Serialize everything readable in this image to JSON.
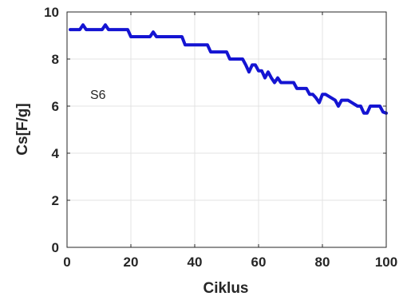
{
  "chart_data": {
    "type": "line",
    "title": "",
    "xlabel": "Ciklus",
    "ylabel": "Cs[F/g]",
    "xlim": [
      0,
      100
    ],
    "ylim": [
      0,
      10
    ],
    "xticks": [
      0,
      20,
      40,
      60,
      80,
      100
    ],
    "yticks": [
      0,
      2,
      4,
      6,
      8,
      10
    ],
    "grid": true,
    "annotation": "S6",
    "line_color": "#1414d2",
    "series": [
      {
        "x": [
          1,
          4,
          5,
          6,
          11,
          12,
          13,
          19,
          20,
          26,
          27,
          28,
          36,
          37,
          44,
          45,
          50,
          51,
          55,
          56,
          57,
          58,
          59,
          60,
          61,
          62,
          63,
          64,
          65,
          66,
          67,
          71,
          72,
          75,
          76,
          77,
          78,
          79,
          80,
          81,
          84,
          85,
          86,
          87,
          88,
          91,
          92,
          93,
          94,
          95,
          98,
          99,
          100
        ],
        "y": [
          9.25,
          9.25,
          9.45,
          9.25,
          9.25,
          9.45,
          9.25,
          9.25,
          8.95,
          8.95,
          9.15,
          8.95,
          8.95,
          8.6,
          8.6,
          8.3,
          8.3,
          8.0,
          8.0,
          7.75,
          7.45,
          7.75,
          7.75,
          7.5,
          7.5,
          7.2,
          7.45,
          7.2,
          7.0,
          7.2,
          7.0,
          7.0,
          6.75,
          6.75,
          6.5,
          6.5,
          6.35,
          6.15,
          6.5,
          6.5,
          6.25,
          6.0,
          6.25,
          6.25,
          6.25,
          6.0,
          6.0,
          5.7,
          5.7,
          6.0,
          6.0,
          5.75,
          5.7
        ]
      }
    ]
  }
}
